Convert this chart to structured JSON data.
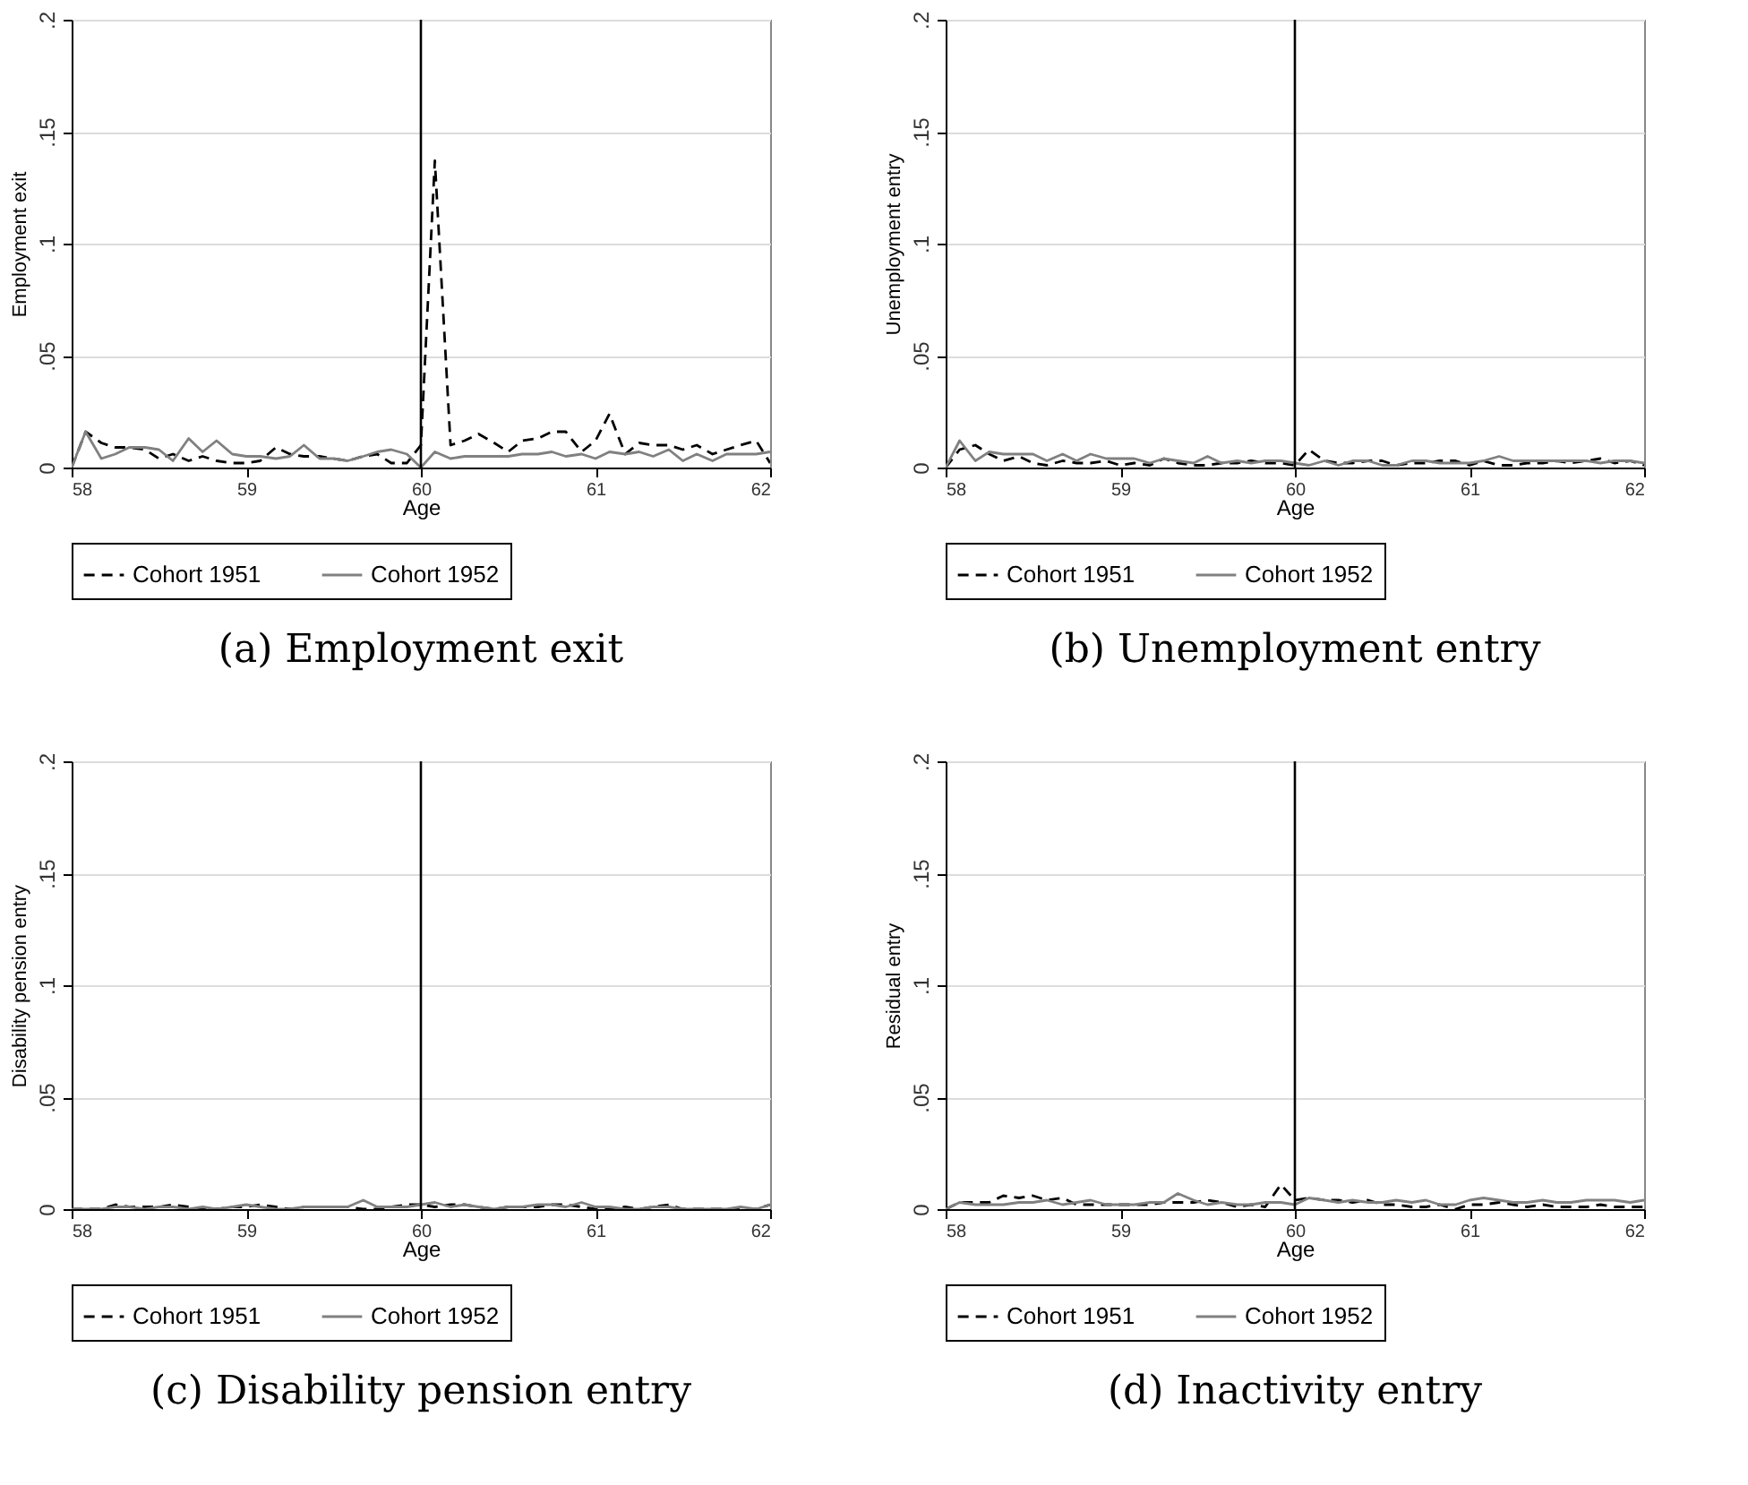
{
  "chart_data": [
    {
      "type": "line",
      "title": "(a) Employment exit",
      "xlabel": "Age",
      "ylabel": "Employment exit",
      "xlim": [
        58,
        62
      ],
      "xticks": [
        58,
        59,
        60,
        61,
        62
      ],
      "ylim": [
        0,
        0.2
      ],
      "yticks": [
        {
          "value": 0,
          "label": "0"
        },
        {
          "value": 0.05,
          "label": ".05"
        },
        {
          "value": 0.1,
          "label": ".1"
        },
        {
          "value": 0.15,
          "label": ".15"
        },
        {
          "value": 0.2,
          "label": ".2"
        }
      ],
      "grid": "y",
      "legend": "bottom",
      "ref_lines": [
        {
          "axis": "x",
          "value": 60,
          "color": "#000000"
        }
      ],
      "x": [
        58,
        58.08,
        58.17,
        58.25,
        58.33,
        58.42,
        58.5,
        58.58,
        58.67,
        58.75,
        58.83,
        58.92,
        59,
        59.08,
        59.17,
        59.25,
        59.33,
        59.42,
        59.5,
        59.58,
        59.67,
        59.75,
        59.83,
        59.92,
        60,
        60.08,
        60.17,
        60.25,
        60.33,
        60.42,
        60.5,
        60.58,
        60.67,
        60.75,
        60.83,
        60.92,
        61,
        61.08,
        61.17,
        61.25,
        61.33,
        61.42,
        61.5,
        61.58,
        61.67,
        61.75,
        61.83,
        61.92,
        62
      ],
      "series": [
        {
          "name": "Cohort 1951",
          "color": "#000000",
          "line_style": "dashed",
          "values": [
            0,
            0.016,
            0.011,
            0.009,
            0.009,
            0.008,
            0.004,
            0.006,
            0.003,
            0.005,
            0.003,
            0.002,
            0.002,
            0.003,
            0.009,
            0.006,
            0.005,
            0.005,
            0.004,
            0.003,
            0.005,
            0.006,
            0.002,
            0.002,
            0.01,
            0.137,
            0.01,
            0.012,
            0.015,
            0.011,
            0.007,
            0.012,
            0.013,
            0.016,
            0.016,
            0.007,
            0.012,
            0.024,
            0.006,
            0.011,
            0.01,
            0.01,
            0.008,
            0.01,
            0.006,
            0.008,
            0.01,
            0.012,
            0.002
          ]
        },
        {
          "name": "Cohort 1952",
          "color": "#808080",
          "line_style": "solid",
          "values": [
            0,
            0.016,
            0.004,
            0.006,
            0.009,
            0.009,
            0.008,
            0.003,
            0.013,
            0.007,
            0.012,
            0.006,
            0.005,
            0.005,
            0.004,
            0.005,
            0.01,
            0.004,
            0.004,
            0.003,
            0.005,
            0.007,
            0.008,
            0.006,
            0,
            0.007,
            0.004,
            0.005,
            0.005,
            0.005,
            0.005,
            0.006,
            0.006,
            0.007,
            0.005,
            0.006,
            0.004,
            0.007,
            0.006,
            0.007,
            0.005,
            0.008,
            0.003,
            0.006,
            0.003,
            0.006,
            0.006,
            0.006,
            0.007
          ]
        }
      ]
    },
    {
      "type": "line",
      "title": "(b) Unemployment entry",
      "xlabel": "Age",
      "ylabel": "Unemployment entry",
      "xlim": [
        58,
        62
      ],
      "xticks": [
        58,
        59,
        60,
        61,
        62
      ],
      "ylim": [
        0,
        0.2
      ],
      "yticks": [
        {
          "value": 0,
          "label": "0"
        },
        {
          "value": 0.05,
          "label": ".05"
        },
        {
          "value": 0.1,
          "label": ".1"
        },
        {
          "value": 0.15,
          "label": ".15"
        },
        {
          "value": 0.2,
          "label": ".2"
        }
      ],
      "grid": "y",
      "legend": "bottom",
      "ref_lines": [
        {
          "axis": "x",
          "value": 60,
          "color": "#000000"
        }
      ],
      "x": [
        58,
        58.08,
        58.17,
        58.25,
        58.33,
        58.42,
        58.5,
        58.58,
        58.67,
        58.75,
        58.83,
        58.92,
        59,
        59.08,
        59.17,
        59.25,
        59.33,
        59.42,
        59.5,
        59.58,
        59.67,
        59.75,
        59.83,
        59.92,
        60,
        60.08,
        60.17,
        60.25,
        60.33,
        60.42,
        60.5,
        60.58,
        60.67,
        60.75,
        60.83,
        60.92,
        61,
        61.08,
        61.17,
        61.25,
        61.33,
        61.42,
        61.5,
        61.58,
        61.67,
        61.75,
        61.83,
        61.92,
        62
      ],
      "series": [
        {
          "name": "Cohort 1951",
          "color": "#000000",
          "line_style": "dashed",
          "values": [
            0,
            0.008,
            0.01,
            0.006,
            0.003,
            0.005,
            0.002,
            0.001,
            0.003,
            0.002,
            0.002,
            0.003,
            0.001,
            0.002,
            0.001,
            0.004,
            0.002,
            0.001,
            0.001,
            0.002,
            0.002,
            0.003,
            0.002,
            0.002,
            0.001,
            0.008,
            0.003,
            0.002,
            0.002,
            0.003,
            0.003,
            0.001,
            0.002,
            0.002,
            0.003,
            0.003,
            0.001,
            0.003,
            0.001,
            0.001,
            0.002,
            0.002,
            0.003,
            0.002,
            0.003,
            0.004,
            0.002,
            0.003,
            0.001
          ]
        },
        {
          "name": "Cohort 1952",
          "color": "#808080",
          "line_style": "solid",
          "values": [
            0,
            0.012,
            0.003,
            0.007,
            0.006,
            0.006,
            0.006,
            0.003,
            0.006,
            0.003,
            0.006,
            0.004,
            0.004,
            0.004,
            0.002,
            0.004,
            0.003,
            0.002,
            0.005,
            0.002,
            0.003,
            0.002,
            0.003,
            0.003,
            0.002,
            0.001,
            0.003,
            0.001,
            0.003,
            0.003,
            0.001,
            0.001,
            0.003,
            0.003,
            0.002,
            0.002,
            0.002,
            0.003,
            0.005,
            0.003,
            0.003,
            0.003,
            0.003,
            0.003,
            0.003,
            0.002,
            0.003,
            0.003,
            0.002
          ]
        }
      ]
    },
    {
      "type": "line",
      "title": "(c) Disability pension entry",
      "xlabel": "Age",
      "ylabel": "Disability pension entry",
      "xlim": [
        58,
        62
      ],
      "xticks": [
        58,
        59,
        60,
        61,
        62
      ],
      "ylim": [
        0,
        0.2
      ],
      "yticks": [
        {
          "value": 0,
          "label": "0"
        },
        {
          "value": 0.05,
          "label": ".05"
        },
        {
          "value": 0.1,
          "label": ".1"
        },
        {
          "value": 0.15,
          "label": ".15"
        },
        {
          "value": 0.2,
          "label": ".2"
        }
      ],
      "grid": "y",
      "legend": "bottom",
      "ref_lines": [
        {
          "axis": "x",
          "value": 60,
          "color": "#000000"
        }
      ],
      "x": [
        58,
        58.08,
        58.17,
        58.25,
        58.33,
        58.42,
        58.5,
        58.58,
        58.67,
        58.75,
        58.83,
        58.92,
        59,
        59.08,
        59.17,
        59.25,
        59.33,
        59.42,
        59.5,
        59.58,
        59.67,
        59.75,
        59.83,
        59.92,
        60,
        60.08,
        60.17,
        60.25,
        60.33,
        60.42,
        60.5,
        60.58,
        60.67,
        60.75,
        60.83,
        60.92,
        61,
        61.08,
        61.17,
        61.25,
        61.33,
        61.42,
        61.5,
        61.58,
        61.67,
        61.75,
        61.83,
        61.92,
        62
      ],
      "series": [
        {
          "name": "Cohort 1951",
          "color": "#000000",
          "line_style": "dashed",
          "values": [
            0,
            0,
            0,
            0.002,
            0.001,
            0.001,
            0.001,
            0.002,
            0.001,
            0,
            0,
            0.001,
            0.001,
            0.002,
            0.001,
            0,
            0.001,
            0.001,
            0.001,
            0.001,
            0,
            0,
            0.001,
            0.002,
            0.002,
            0.001,
            0.002,
            0.002,
            0.001,
            0,
            0.001,
            0.001,
            0.001,
            0.002,
            0.002,
            0.001,
            0,
            0,
            0.001,
            0,
            0.001,
            0.002,
            0,
            0,
            0,
            0,
            0,
            0,
            0.002
          ]
        },
        {
          "name": "Cohort 1952",
          "color": "#808080",
          "line_style": "solid",
          "values": [
            0,
            0,
            0,
            0.001,
            0.001,
            0,
            0.001,
            0.001,
            0,
            0.001,
            0,
            0.001,
            0.002,
            0.001,
            0,
            0,
            0.001,
            0.001,
            0.001,
            0.001,
            0.004,
            0.001,
            0.001,
            0.001,
            0.002,
            0.003,
            0.001,
            0.002,
            0.001,
            0,
            0.001,
            0.001,
            0.002,
            0.002,
            0.001,
            0.003,
            0.001,
            0.001,
            0,
            0,
            0.001,
            0.001,
            0,
            0,
            0,
            0,
            0.001,
            0,
            0.002
          ]
        }
      ]
    },
    {
      "type": "line",
      "title": "(d) Inactivity entry",
      "xlabel": "Age",
      "ylabel": "Residual entry",
      "xlim": [
        58,
        62
      ],
      "xticks": [
        58,
        59,
        60,
        61,
        62
      ],
      "ylim": [
        0,
        0.2
      ],
      "yticks": [
        {
          "value": 0,
          "label": "0"
        },
        {
          "value": 0.05,
          "label": ".05"
        },
        {
          "value": 0.1,
          "label": ".1"
        },
        {
          "value": 0.15,
          "label": ".15"
        },
        {
          "value": 0.2,
          "label": ".2"
        }
      ],
      "grid": "y",
      "legend": "bottom",
      "ref_lines": [
        {
          "axis": "x",
          "value": 60,
          "color": "#000000"
        }
      ],
      "x": [
        58,
        58.08,
        58.17,
        58.25,
        58.33,
        58.42,
        58.5,
        58.58,
        58.67,
        58.75,
        58.83,
        58.92,
        59,
        59.08,
        59.17,
        59.25,
        59.33,
        59.42,
        59.5,
        59.58,
        59.67,
        59.75,
        59.83,
        59.92,
        60,
        60.08,
        60.17,
        60.25,
        60.33,
        60.42,
        60.5,
        60.58,
        60.67,
        60.75,
        60.83,
        60.92,
        61,
        61.08,
        61.17,
        61.25,
        61.33,
        61.42,
        61.5,
        61.58,
        61.67,
        61.75,
        61.83,
        61.92,
        62
      ],
      "series": [
        {
          "name": "Cohort 1951",
          "color": "#000000",
          "line_style": "dashed",
          "values": [
            0,
            0.003,
            0.003,
            0.003,
            0.006,
            0.005,
            0.006,
            0.004,
            0.005,
            0.002,
            0.002,
            0.002,
            0.002,
            0.002,
            0.002,
            0.003,
            0.003,
            0.003,
            0.004,
            0.003,
            0.001,
            0.002,
            0.001,
            0.011,
            0.004,
            0.005,
            0.004,
            0.004,
            0.003,
            0.004,
            0.002,
            0.002,
            0.001,
            0.001,
            0.002,
            0,
            0.002,
            0.002,
            0.003,
            0.002,
            0.001,
            0.002,
            0.001,
            0.001,
            0.001,
            0.002,
            0.001,
            0.001,
            0.001
          ]
        },
        {
          "name": "Cohort 1952",
          "color": "#808080",
          "line_style": "solid",
          "values": [
            0,
            0.003,
            0.002,
            0.002,
            0.002,
            0.003,
            0.003,
            0.004,
            0.002,
            0.003,
            0.004,
            0.002,
            0.002,
            0.002,
            0.003,
            0.003,
            0.007,
            0.004,
            0.002,
            0.003,
            0.002,
            0.002,
            0.003,
            0.003,
            0.002,
            0.005,
            0.004,
            0.003,
            0.004,
            0.003,
            0.003,
            0.004,
            0.003,
            0.004,
            0.002,
            0.002,
            0.004,
            0.005,
            0.004,
            0.003,
            0.003,
            0.004,
            0.003,
            0.003,
            0.004,
            0.004,
            0.004,
            0.003,
            0.004
          ]
        }
      ]
    }
  ]
}
